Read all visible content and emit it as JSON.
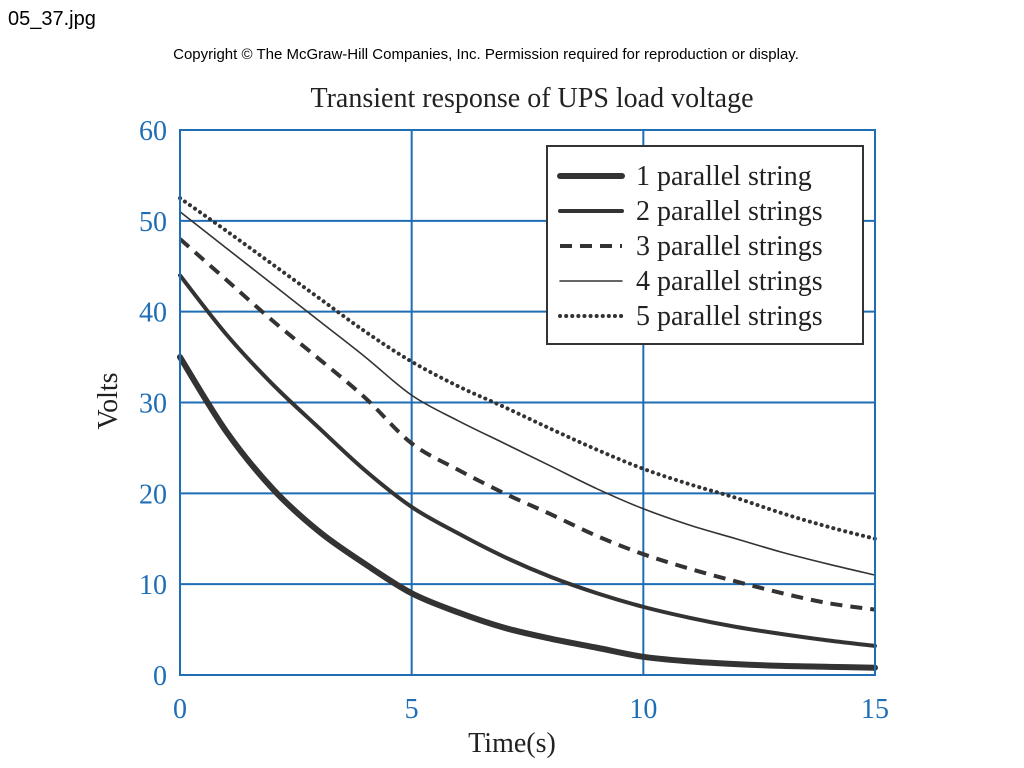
{
  "file_name": "05_37.jpg",
  "copyright": "Copyright © The McGraw-Hill Companies, Inc. Permission required for reproduction or display.",
  "chart_data": {
    "type": "line",
    "title": "Transient response of UPS load voltage",
    "xlabel": "Time(s)",
    "ylabel": "Volts",
    "xlim": [
      0,
      15
    ],
    "ylim": [
      0,
      60
    ],
    "x_ticks": [
      0,
      5,
      10,
      15
    ],
    "y_ticks": [
      0,
      10,
      20,
      30,
      40,
      50,
      60
    ],
    "grid": true,
    "legend_position": "top-right",
    "x": [
      0,
      1,
      2,
      3,
      4,
      5,
      6,
      7,
      8,
      9,
      10,
      11,
      12,
      13,
      14,
      15
    ],
    "series": [
      {
        "name": "1 parallel string",
        "style": "thick-solid",
        "values": [
          35,
          26.8,
          20.5,
          15.8,
          12.2,
          9.0,
          6.9,
          5.2,
          4.0,
          3.0,
          2.0,
          1.5,
          1.2,
          1.0,
          0.9,
          0.8
        ]
      },
      {
        "name": "2 parallel strings",
        "style": "solid",
        "values": [
          44,
          37.5,
          32,
          27.2,
          22.5,
          18.5,
          15.6,
          13.0,
          10.8,
          9.0,
          7.5,
          6.3,
          5.3,
          4.5,
          3.8,
          3.2
        ]
      },
      {
        "name": "3 parallel strings",
        "style": "dashed",
        "values": [
          48,
          43.5,
          39,
          34.8,
          30.5,
          25.5,
          22.6,
          20.0,
          17.7,
          15.3,
          13.3,
          11.7,
          10.3,
          9.0,
          7.9,
          7.2
        ]
      },
      {
        "name": "4 parallel strings",
        "style": "thin-solid",
        "values": [
          51,
          47,
          43,
          39,
          35,
          30.8,
          28.0,
          25.5,
          23.0,
          20.5,
          18.3,
          16.5,
          15.0,
          13.5,
          12.2,
          11.0
        ]
      },
      {
        "name": "5 parallel strings",
        "style": "dotted",
        "values": [
          52.5,
          48.9,
          45.2,
          41.5,
          37.8,
          34.5,
          31.8,
          29.5,
          27.1,
          24.8,
          22.7,
          21.0,
          19.5,
          17.8,
          16.3,
          15.0
        ]
      }
    ],
    "colors": {
      "grid": "#1f6db5",
      "tick_label": "#1f6db5",
      "line": "#333333"
    }
  }
}
